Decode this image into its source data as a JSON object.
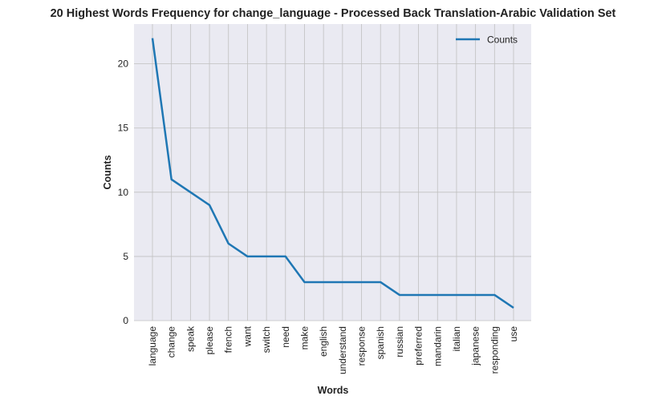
{
  "chart_data": {
    "type": "line",
    "title": "20 Highest Words Frequency for change_language - Processed Back Translation-Arabic Validation Set",
    "xlabel": "Words",
    "ylabel": "Counts",
    "categories": [
      "language",
      "change",
      "speak",
      "please",
      "french",
      "want",
      "switch",
      "need",
      "make",
      "english",
      "understand",
      "response",
      "spanish",
      "russian",
      "preferred",
      "mandarin",
      "italian",
      "japanese",
      "responding",
      "use"
    ],
    "series": [
      {
        "name": "Counts",
        "values": [
          22,
          11,
          10,
          9,
          6,
          5,
          5,
          5,
          3,
          3,
          3,
          3,
          3,
          2,
          2,
          2,
          2,
          2,
          2,
          1
        ],
        "color": "#1f77b4"
      }
    ],
    "ylim": [
      0,
      23.1
    ],
    "yticks": [
      0,
      5,
      10,
      15,
      20
    ],
    "grid": true,
    "legend": "top-right",
    "background_color": "#eaeaf2",
    "grid_color": "#c0c0c0"
  }
}
